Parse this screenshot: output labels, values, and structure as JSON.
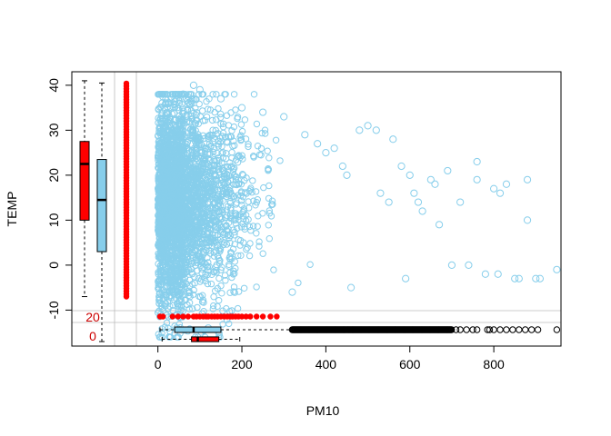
{
  "chart_data": {
    "type": "scatter",
    "title": "",
    "xlabel": "PM10",
    "ylabel": "TEMP",
    "xlim": [
      -205,
      960
    ],
    "ylim": [
      -18,
      43
    ],
    "x_ticks": [
      "0",
      "200",
      "400",
      "600",
      "800"
    ],
    "y_ticks": [
      "-10",
      "0",
      "10",
      "20",
      "30",
      "40"
    ],
    "grid": false,
    "legend": "none",
    "colors": {
      "points": "#87ceeb",
      "missing": "#ff0000",
      "box_temp_missing": "#ff0000",
      "box_temp_observed": "#87ceeb",
      "outliers": "#000000",
      "missing_count_text": "#cc0000"
    },
    "series": [
      {
        "values": [
          {
            "x": 2,
            "y": -2
          },
          {
            "x": 10,
            "y": 36
          },
          {
            "x": 25,
            "y": 30
          },
          {
            "x": 45,
            "y": -14
          },
          {
            "x": 60,
            "y": 38
          },
          {
            "x": 85,
            "y": 40
          },
          {
            "x": 100,
            "y": 39
          },
          {
            "x": 120,
            "y": -14
          },
          {
            "x": 145,
            "y": -15
          },
          {
            "x": 150,
            "y": 37
          },
          {
            "x": 200,
            "y": 35
          },
          {
            "x": 250,
            "y": 34
          },
          {
            "x": 300,
            "y": 33
          },
          {
            "x": 320,
            "y": -6
          },
          {
            "x": 350,
            "y": 29
          },
          {
            "x": 380,
            "y": 27
          },
          {
            "x": 400,
            "y": 25
          },
          {
            "x": 420,
            "y": 26
          },
          {
            "x": 440,
            "y": 22
          },
          {
            "x": 450,
            "y": 20
          },
          {
            "x": 460,
            "y": -5
          },
          {
            "x": 480,
            "y": 30
          },
          {
            "x": 500,
            "y": 31
          },
          {
            "x": 520,
            "y": 30
          },
          {
            "x": 530,
            "y": 16
          },
          {
            "x": 550,
            "y": 14
          },
          {
            "x": 560,
            "y": 28
          },
          {
            "x": 580,
            "y": 22
          },
          {
            "x": 590,
            "y": -3
          },
          {
            "x": 600,
            "y": 20
          },
          {
            "x": 610,
            "y": 16
          },
          {
            "x": 620,
            "y": 14
          },
          {
            "x": 630,
            "y": 12
          },
          {
            "x": 650,
            "y": 19
          },
          {
            "x": 660,
            "y": 18
          },
          {
            "x": 670,
            "y": 9
          },
          {
            "x": 690,
            "y": 21
          },
          {
            "x": 700,
            "y": 0
          },
          {
            "x": 720,
            "y": 14
          },
          {
            "x": 740,
            "y": 0
          },
          {
            "x": 760,
            "y": 23
          },
          {
            "x": 760,
            "y": 19
          },
          {
            "x": 780,
            "y": -2
          },
          {
            "x": 800,
            "y": 17
          },
          {
            "x": 810,
            "y": -2
          },
          {
            "x": 815,
            "y": 16
          },
          {
            "x": 830,
            "y": 18
          },
          {
            "x": 850,
            "y": -3
          },
          {
            "x": 860,
            "y": -3
          },
          {
            "x": 880,
            "y": 10
          },
          {
            "x": 880,
            "y": 19
          },
          {
            "x": 900,
            "y": -3
          },
          {
            "x": 910,
            "y": -3
          },
          {
            "x": 950,
            "y": -1
          }
        ]
      }
    ],
    "missing_count_labels": [
      "20",
      "0"
    ],
    "box_temp_missing_pm10": {
      "whisker_low": -7,
      "q1": 10,
      "median": 22.5,
      "q3": 27.5,
      "whisker_high": 41
    },
    "box_temp_observed_pm10": {
      "whisker_low": -17,
      "q1": 3,
      "median": 14.5,
      "q3": 23.5,
      "whisker_high": 40.5
    },
    "box_pm10_observed_temp": {
      "whisker_low": 5,
      "q1": 40,
      "median": 85,
      "q3": 150,
      "whisker_high": 320
    },
    "box_pm10_missing_temp": {
      "whisker_low": 10,
      "q1": 80,
      "median": 95,
      "q3": 145,
      "whisker_high": 195
    }
  }
}
